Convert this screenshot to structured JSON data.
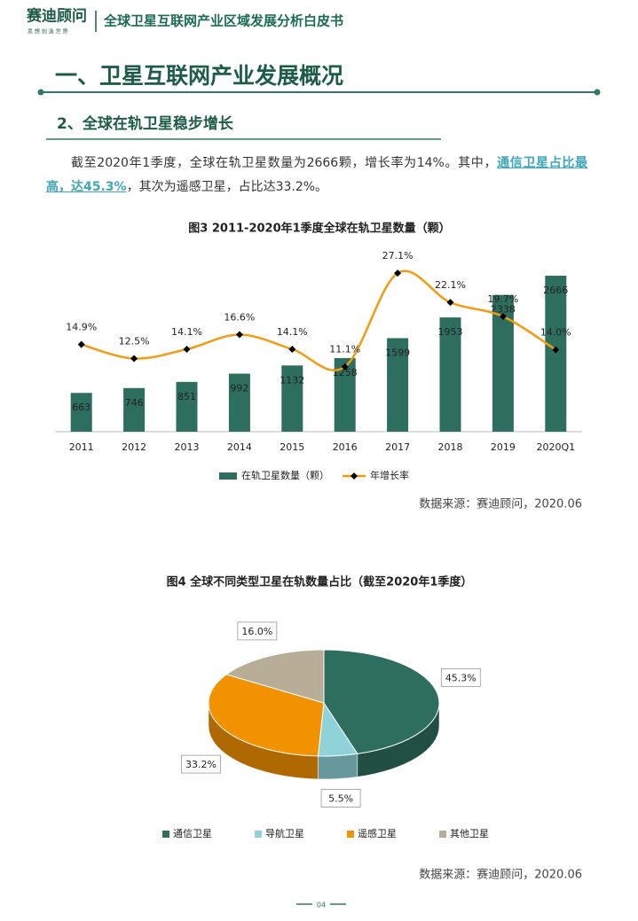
{
  "header": {
    "logo": "赛迪顾问",
    "slogan": "思 想 创 造 世 界",
    "title": "全球卫星互联网产业区域发展分析白皮书"
  },
  "heading1": "一、卫星互联网产业发展概况",
  "heading2": "2、全球在轨卫星稳步增长",
  "paragraph": {
    "text_before": "截至2020年1季度，全球在轨卫星数量为2666颗，增长率为14%。其中，",
    "highlight": "通信卫星占比最高，达45.3%",
    "text_after": "，其次为遥感卫星，占比达33.2%。"
  },
  "chart_data": [
    {
      "type": "bar",
      "title": "图3  2011-2020年1季度全球在轨卫星数量（颗）",
      "categories": [
        "2011",
        "2012",
        "2013",
        "2014",
        "2015",
        "2016",
        "2017",
        "2018",
        "2019",
        "2020Q1"
      ],
      "series": [
        {
          "name": "在轨卫星数量（颗）",
          "type": "bar",
          "color": "#2e6e5e",
          "values": [
            663,
            746,
            851,
            992,
            1132,
            1258,
            1599,
            1953,
            2338,
            2666
          ]
        },
        {
          "name": "年增长率",
          "type": "line",
          "axis": "y2",
          "color": "#f39c12",
          "marker_color": "#000000",
          "values": [
            14.9,
            12.5,
            14.1,
            16.6,
            14.1,
            11.1,
            27.1,
            22.1,
            19.7,
            14.0
          ],
          "value_labels": [
            "14.9%",
            "12.5%",
            "14.1%",
            "16.6%",
            "14.1%",
            "11.1%",
            "27.1%",
            "22.1%",
            "19.7%",
            "14.0%"
          ]
        }
      ],
      "ylim": [
        0,
        3000
      ],
      "y2lim": [
        0,
        30
      ],
      "legend": "bottom"
    },
    {
      "type": "pie",
      "title": "图4  全球不同类型卫星在轨数量占比（截至2020年1季度）",
      "categories": [
        "通信卫星",
        "导航卫星",
        "遥感卫星",
        "其他卫星"
      ],
      "values": [
        45.3,
        5.5,
        33.2,
        16.0
      ],
      "value_labels": [
        "45.3%",
        "5.5%",
        "33.2%",
        "16.0%"
      ],
      "colors": [
        "#2e6e5e",
        "#8fd3d8",
        "#f39200",
        "#b8ad96"
      ],
      "legend": "bottom"
    }
  ],
  "sources": [
    "数据来源：赛迪顾问，2020.06",
    "数据来源：赛迪顾问，2020.06"
  ],
  "page_number": "04"
}
